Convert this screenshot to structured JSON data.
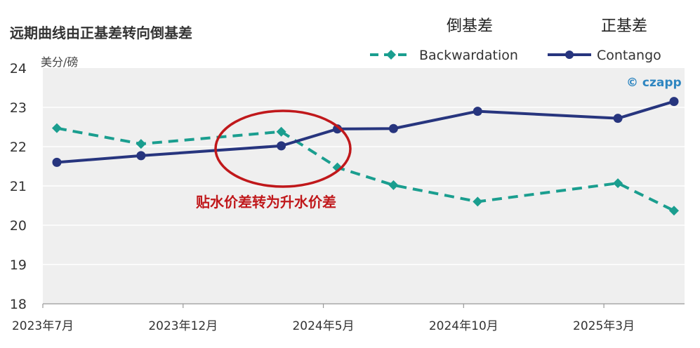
{
  "chart_data": {
    "type": "line",
    "title": "远期曲线由正基差转向倒基差",
    "ylabel": "美分/磅",
    "ylim": [
      18,
      24
    ],
    "yticks": [
      18,
      19,
      20,
      21,
      22,
      23,
      24
    ],
    "xlim": [
      0,
      22
    ],
    "xticks": [
      {
        "x": 0,
        "label": "2023年7月"
      },
      {
        "x": 5,
        "label": "2023年12月"
      },
      {
        "x": 10,
        "label": "2024年5月"
      },
      {
        "x": 15,
        "label": "2024年10月"
      },
      {
        "x": 20,
        "label": "2025年3月"
      }
    ],
    "grid": true,
    "legend_position": "top-right",
    "series": [
      {
        "name": "Backwardation",
        "color": "#1a9e8f",
        "style": "dashed",
        "marker": "diamond",
        "points": [
          {
            "x": 0.5,
            "y": 22.47
          },
          {
            "x": 3.5,
            "y": 22.07
          },
          {
            "x": 8.5,
            "y": 22.38
          },
          {
            "x": 10.5,
            "y": 21.47
          },
          {
            "x": 12.5,
            "y": 21.02
          },
          {
            "x": 15.5,
            "y": 20.6
          },
          {
            "x": 20.5,
            "y": 21.07
          },
          {
            "x": 22.5,
            "y": 20.37
          }
        ]
      },
      {
        "name": "Contango",
        "color": "#27357e",
        "style": "solid",
        "marker": "circle",
        "points": [
          {
            "x": 0.5,
            "y": 21.6
          },
          {
            "x": 3.5,
            "y": 21.77
          },
          {
            "x": 8.5,
            "y": 22.02
          },
          {
            "x": 10.5,
            "y": 22.45
          },
          {
            "x": 12.5,
            "y": 22.46
          },
          {
            "x": 15.5,
            "y": 22.9
          },
          {
            "x": 20.5,
            "y": 22.72
          },
          {
            "x": 22.5,
            "y": 23.15
          }
        ]
      }
    ],
    "header_labels": [
      "倒基差",
      "正基差"
    ],
    "annotation": {
      "text": "贴水价差转为升水价差",
      "color": "#c0181b"
    },
    "watermark": "© czapp",
    "colors": {
      "plot_background": "#efefef",
      "grid": "#ffffff",
      "axis": "#999999",
      "annotation_ring": "#c0181b"
    }
  }
}
